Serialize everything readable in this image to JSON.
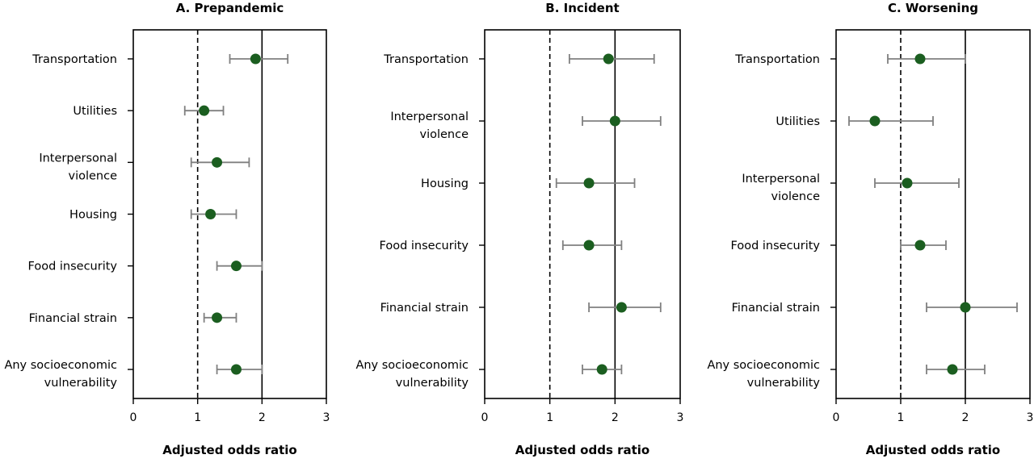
{
  "chart_data": [
    {
      "type": "scatter",
      "title": "A. Prepandemic",
      "xlabel": "Adjusted odds ratio",
      "ylabel": "",
      "xlim": [
        0,
        3
      ],
      "xticks": [
        0,
        1,
        2,
        3
      ],
      "reference_lines": {
        "dashed": 1,
        "solid": 2
      },
      "categories": [
        [
          "Transportation"
        ],
        [
          "Utilities"
        ],
        [
          "Interpersonal",
          "violence"
        ],
        [
          "Housing"
        ],
        [
          "Food insecurity"
        ],
        [
          "Financial strain"
        ],
        [
          "Any socioeconomic",
          "vulnerability"
        ]
      ],
      "estimates": [
        1.9,
        1.1,
        1.3,
        1.2,
        1.6,
        1.3,
        1.6
      ],
      "ci_lower": [
        1.5,
        0.8,
        0.9,
        0.9,
        1.3,
        1.1,
        1.3
      ],
      "ci_upper": [
        2.4,
        1.4,
        1.8,
        1.6,
        2.0,
        1.6,
        2.0
      ]
    },
    {
      "type": "scatter",
      "title": "B. Incident",
      "xlabel": "Adjusted odds ratio",
      "ylabel": "",
      "xlim": [
        0,
        3
      ],
      "xticks": [
        0,
        1,
        2,
        3
      ],
      "reference_lines": {
        "dashed": 1,
        "solid": 2
      },
      "categories": [
        [
          "Transportation"
        ],
        [
          "Interpersonal",
          "violence"
        ],
        [
          "Housing"
        ],
        [
          "Food insecurity"
        ],
        [
          "Financial strain"
        ],
        [
          "Any socioeconomic",
          "vulnerability"
        ]
      ],
      "estimates": [
        1.9,
        2.0,
        1.6,
        1.6,
        2.1,
        1.8
      ],
      "ci_lower": [
        1.3,
        1.5,
        1.1,
        1.2,
        1.6,
        1.5
      ],
      "ci_upper": [
        2.6,
        2.7,
        2.3,
        2.1,
        2.7,
        2.1
      ]
    },
    {
      "type": "scatter",
      "title": "C. Worsening",
      "xlabel": "Adjusted odds ratio",
      "ylabel": "",
      "xlim": [
        0,
        3
      ],
      "xticks": [
        0,
        1,
        2,
        3
      ],
      "reference_lines": {
        "dashed": 1,
        "solid": 2
      },
      "categories": [
        [
          "Transportation"
        ],
        [
          "Utilities"
        ],
        [
          "Interpersonal",
          "violence"
        ],
        [
          "Food insecurity"
        ],
        [
          "Financial strain"
        ],
        [
          "Any socioeconomic",
          "vulnerability"
        ]
      ],
      "estimates": [
        1.3,
        0.6,
        1.1,
        1.3,
        2.0,
        1.8
      ],
      "ci_lower": [
        0.8,
        0.2,
        0.6,
        1.0,
        1.4,
        1.4
      ],
      "ci_upper": [
        2.0,
        1.5,
        1.9,
        1.7,
        2.8,
        2.3
      ]
    }
  ],
  "colors": {
    "point": "#1b5e20",
    "whisker": "#808080",
    "axis": "#000000"
  }
}
